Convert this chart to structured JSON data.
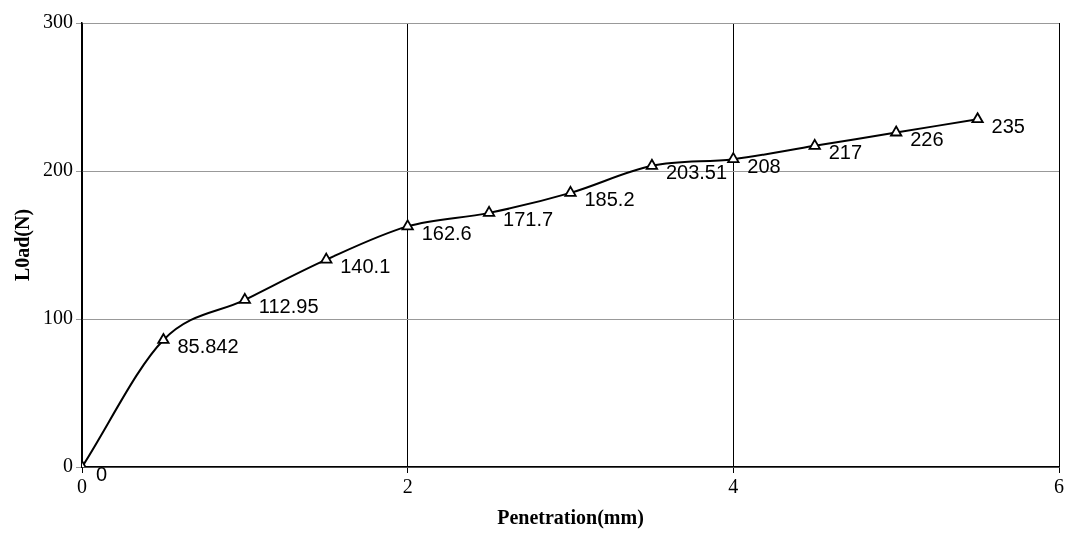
{
  "chart_data": {
    "type": "line",
    "xlabel": "Penetration(mm)",
    "ylabel": "L0ad(N)",
    "x": [
      0,
      0.5,
      1,
      1.5,
      2,
      2.5,
      3,
      3.5,
      4,
      4.5,
      5,
      5.5
    ],
    "series": [
      {
        "color": "#000000",
        "values": [
          0,
          85.842,
          112.95,
          140.1,
          162.6,
          171.7,
          185.2,
          203.51,
          208,
          217,
          226,
          235
        ]
      }
    ],
    "xlim": [
      0,
      6
    ],
    "xticks": [
      0,
      2,
      4,
      6
    ],
    "ylim": [
      0,
      300
    ],
    "yticks": [
      0,
      100,
      200,
      300
    ],
    "grid": true,
    "marker": "triangle",
    "line_style": "solid",
    "data_labels": true
  }
}
